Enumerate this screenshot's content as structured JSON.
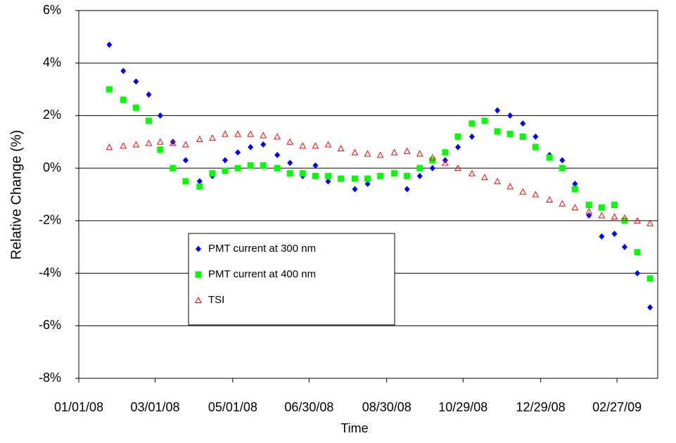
{
  "chart_data": {
    "type": "scatter",
    "x_label": "Time",
    "y_label": "Relative Change (%)",
    "x": [
      "01/25/08",
      "02/05/08",
      "02/15/08",
      "02/25/08",
      "03/05/08",
      "03/15/08",
      "03/25/08",
      "04/05/08",
      "04/15/08",
      "04/25/08",
      "05/05/08",
      "05/15/08",
      "05/25/08",
      "06/05/08",
      "06/15/08",
      "06/25/08",
      "07/05/08",
      "07/15/08",
      "07/25/08",
      "08/05/08",
      "08/15/08",
      "08/25/08",
      "09/05/08",
      "09/15/08",
      "09/25/08",
      "10/05/08",
      "10/15/08",
      "10/25/08",
      "11/05/08",
      "11/15/08",
      "11/25/08",
      "12/05/08",
      "12/15/08",
      "12/25/08",
      "01/05/09",
      "01/15/09",
      "01/25/09",
      "02/05/09",
      "02/15/09",
      "02/25/09",
      "03/05/09",
      "03/15/09",
      "03/25/09"
    ],
    "series": [
      {
        "name": "PMT current at 300 nm",
        "color": "#0000ff",
        "marker": "diamond",
        "values": [
          4.7,
          3.7,
          3.3,
          2.8,
          2.0,
          1.0,
          0.3,
          -0.5,
          -0.3,
          0.3,
          0.6,
          0.8,
          0.9,
          0.5,
          0.2,
          -0.3,
          0.1,
          -0.5,
          -0.4,
          -0.8,
          -0.6,
          -0.3,
          -0.2,
          -0.8,
          -0.3,
          0.0,
          0.3,
          0.8,
          1.2,
          1.8,
          2.2,
          2.0,
          1.7,
          1.2,
          0.5,
          0.3,
          -0.6,
          -1.8,
          -2.6,
          -2.5,
          -3.0,
          -4.0,
          -5.3
        ]
      },
      {
        "name": "PMT current at 400 nm",
        "color": "#00ff00",
        "marker": "square",
        "values": [
          3.0,
          2.6,
          2.3,
          1.8,
          0.7,
          0.0,
          -0.5,
          -0.7,
          -0.2,
          -0.1,
          0.0,
          0.1,
          0.1,
          0.0,
          -0.2,
          -0.2,
          -0.3,
          -0.3,
          -0.4,
          -0.4,
          -0.4,
          -0.3,
          -0.2,
          -0.3,
          0.0,
          0.3,
          0.6,
          1.2,
          1.7,
          1.8,
          1.4,
          1.3,
          1.2,
          0.8,
          0.4,
          0.0,
          -0.8,
          -1.4,
          -1.5,
          -1.4,
          -2.0,
          -3.2,
          -4.2
        ]
      },
      {
        "name": "TSI",
        "color": "#ff0000",
        "marker": "triangle",
        "values": [
          0.8,
          0.85,
          0.9,
          0.95,
          1.0,
          0.95,
          0.9,
          1.1,
          1.15,
          1.3,
          1.3,
          1.3,
          1.25,
          1.2,
          1.0,
          0.85,
          0.85,
          0.9,
          0.75,
          0.6,
          0.55,
          0.5,
          0.6,
          0.65,
          0.55,
          0.4,
          0.2,
          0.0,
          -0.2,
          -0.35,
          -0.5,
          -0.7,
          -0.9,
          -1.0,
          -1.2,
          -1.35,
          -1.5,
          -1.65,
          -1.8,
          -1.85,
          -1.9,
          -2.0,
          -2.1
        ]
      }
    ],
    "xlim": [
      "01/01/08",
      "03/31/09"
    ],
    "xticks": [
      "01/01/08",
      "03/01/08",
      "05/01/08",
      "06/30/08",
      "08/30/08",
      "10/29/08",
      "12/29/08",
      "02/27/09"
    ],
    "ylim": [
      -8,
      6
    ],
    "yticks": [
      {
        "value": -8,
        "label": "-8%"
      },
      {
        "value": -6,
        "label": "-6%"
      },
      {
        "value": -4,
        "label": "-4%"
      },
      {
        "value": -2,
        "label": "-2%"
      },
      {
        "value": 0,
        "label": "0%"
      },
      {
        "value": 2,
        "label": "2%"
      },
      {
        "value": 4,
        "label": "4%"
      },
      {
        "value": 6,
        "label": "6%"
      }
    ],
    "grid": true
  }
}
